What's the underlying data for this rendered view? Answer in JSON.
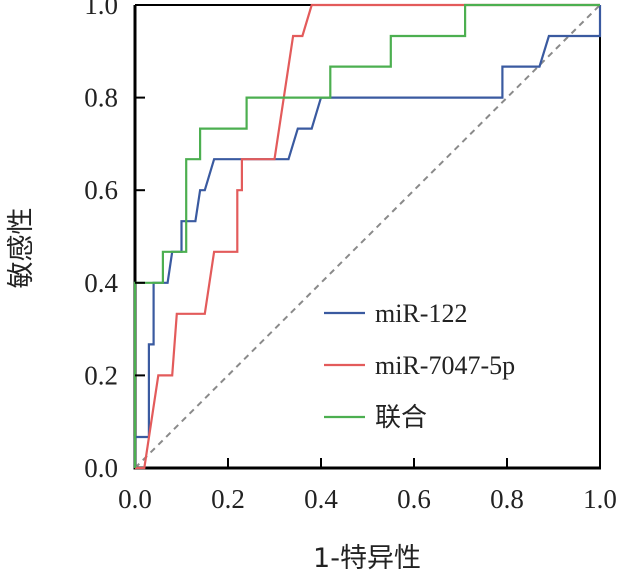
{
  "chart_data": {
    "type": "line",
    "title": "",
    "xlabel": "1-特异性",
    "ylabel": "敏感性",
    "xlim": [
      0,
      1
    ],
    "ylim": [
      0,
      1
    ],
    "x_ticks": [
      "0.0",
      "0.2",
      "0.4",
      "0.6",
      "0.8",
      "1.0"
    ],
    "y_ticks": [
      "0.0",
      "0.2",
      "0.4",
      "0.6",
      "0.8",
      "1.0"
    ],
    "grid": false,
    "legend_position": "bottom-right",
    "reference_line": {
      "name": "diagonal",
      "points": [
        [
          0,
          0
        ],
        [
          1,
          1
        ]
      ],
      "color": "#8a8a8a",
      "style": "dashed"
    },
    "series": [
      {
        "name": "miR-122",
        "color": "#3a5aa0",
        "points": [
          [
            0,
            0
          ],
          [
            0,
            0.067
          ],
          [
            0.03,
            0.067
          ],
          [
            0.03,
            0.267
          ],
          [
            0.04,
            0.267
          ],
          [
            0.04,
            0.4
          ],
          [
            0.07,
            0.4
          ],
          [
            0.08,
            0.467
          ],
          [
            0.1,
            0.467
          ],
          [
            0.1,
            0.533
          ],
          [
            0.13,
            0.533
          ],
          [
            0.14,
            0.6
          ],
          [
            0.15,
            0.6
          ],
          [
            0.17,
            0.667
          ],
          [
            0.33,
            0.667
          ],
          [
            0.35,
            0.733
          ],
          [
            0.38,
            0.733
          ],
          [
            0.4,
            0.8
          ],
          [
            0.79,
            0.8
          ],
          [
            0.79,
            0.867
          ],
          [
            0.87,
            0.867
          ],
          [
            0.89,
            0.933
          ],
          [
            1,
            0.933
          ],
          [
            1,
            1
          ]
        ]
      },
      {
        "name": "miR-7047-5p",
        "color": "#e35b5b",
        "points": [
          [
            0,
            0
          ],
          [
            0.02,
            0
          ],
          [
            0.05,
            0.2
          ],
          [
            0.08,
            0.2
          ],
          [
            0.09,
            0.333
          ],
          [
            0.15,
            0.333
          ],
          [
            0.17,
            0.467
          ],
          [
            0.22,
            0.467
          ],
          [
            0.22,
            0.6
          ],
          [
            0.23,
            0.6
          ],
          [
            0.23,
            0.667
          ],
          [
            0.3,
            0.667
          ],
          [
            0.34,
            0.933
          ],
          [
            0.36,
            0.933
          ],
          [
            0.38,
            1
          ],
          [
            1,
            1
          ]
        ]
      },
      {
        "name": "联合",
        "color": "#4caf50",
        "points": [
          [
            0,
            0
          ],
          [
            0,
            0.4
          ],
          [
            0.06,
            0.4
          ],
          [
            0.06,
            0.467
          ],
          [
            0.11,
            0.467
          ],
          [
            0.11,
            0.667
          ],
          [
            0.14,
            0.667
          ],
          [
            0.14,
            0.733
          ],
          [
            0.24,
            0.733
          ],
          [
            0.24,
            0.8
          ],
          [
            0.42,
            0.8
          ],
          [
            0.42,
            0.867
          ],
          [
            0.55,
            0.867
          ],
          [
            0.55,
            0.933
          ],
          [
            0.71,
            0.933
          ],
          [
            0.71,
            1
          ],
          [
            1,
            1
          ]
        ]
      }
    ]
  }
}
